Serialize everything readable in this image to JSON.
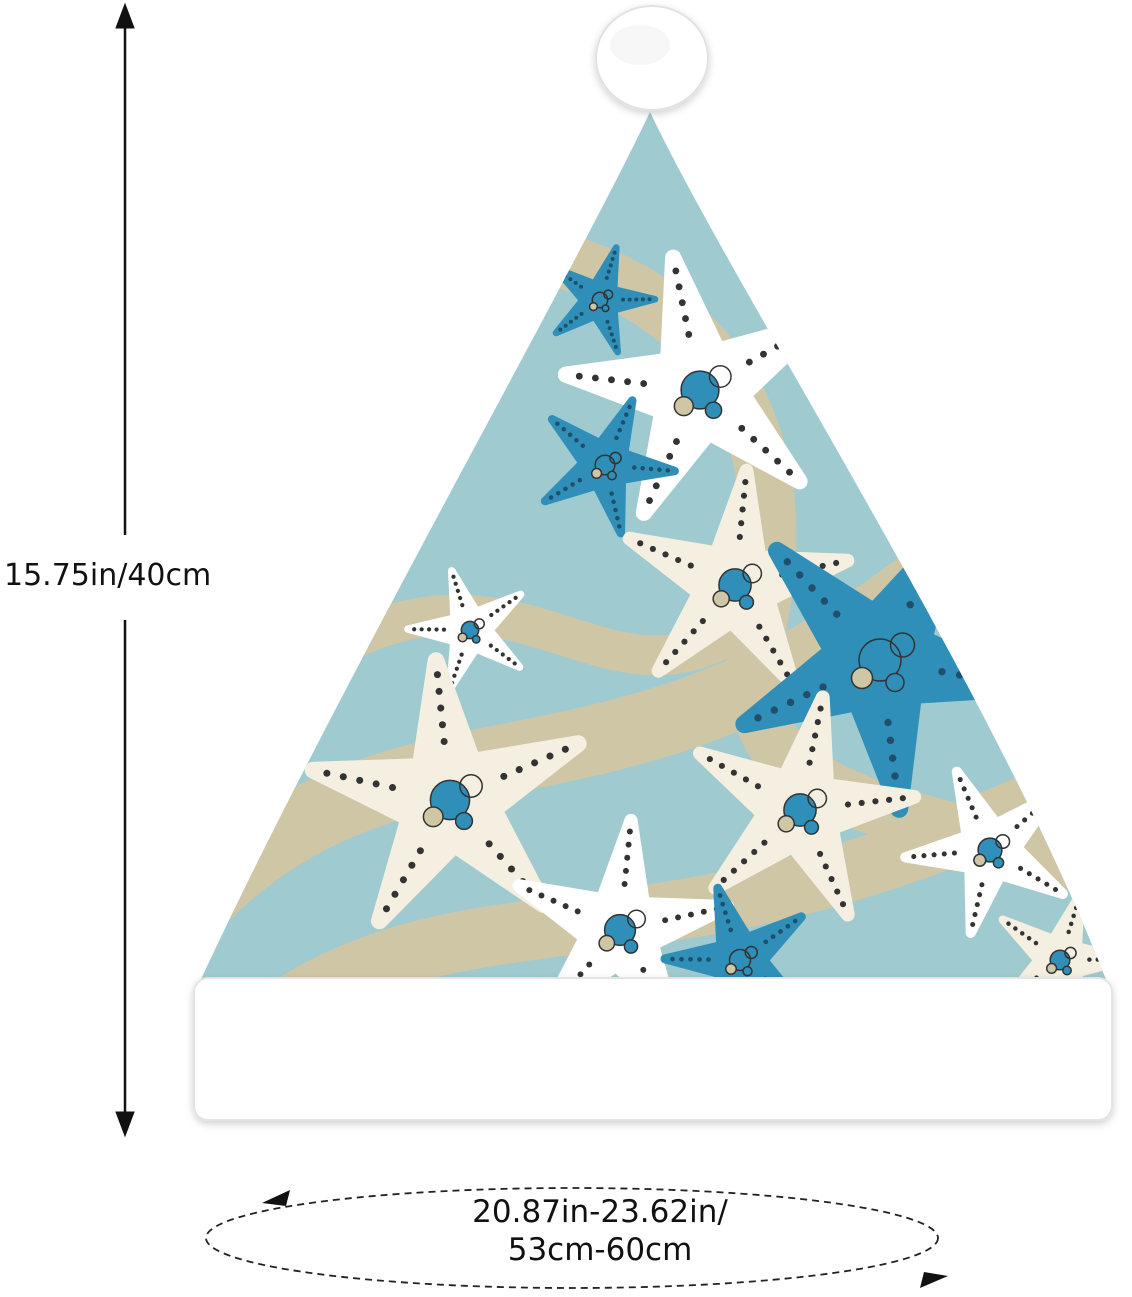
{
  "product": {
    "height_label": "15.75in/40cm",
    "circumference_label_line1": "20.87in-23.62in/",
    "circumference_label_line2": "53cm-60cm"
  },
  "colors": {
    "background": "#ffffff",
    "hat_blue": "#9fcad0",
    "sand": "#cfc6a6",
    "starfish_blue": "#2f8fb8",
    "starfish_cream": "#f4efe0",
    "starfish_white": "#ffffff",
    "trim": "#ffffff"
  },
  "icons": [
    "vertical-double-arrow-icon",
    "circumference-ellipse-icon",
    "arrowhead-icon"
  ]
}
